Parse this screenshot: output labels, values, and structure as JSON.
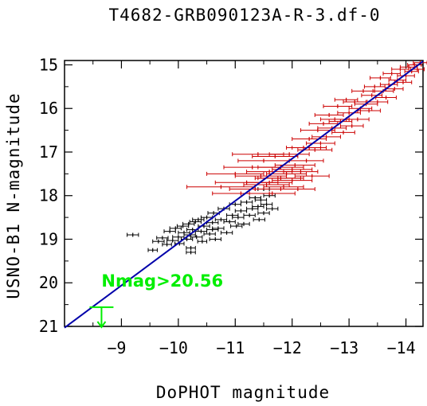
{
  "chart_data": {
    "type": "scatter",
    "title": "T4682-GRB090123A-R-3.df-0",
    "xlabel": "DoPHOT magnitude",
    "ylabel": "USNO-B1 N-magnitude",
    "xlim": [
      -8.0,
      -14.3
    ],
    "ylim": [
      21.0,
      14.9
    ],
    "x_ticks": [
      -9,
      -10,
      -11,
      -12,
      -13,
      -14
    ],
    "x_tick_labels": [
      "−9",
      "−10",
      "−11",
      "−12",
      "−13",
      "−14"
    ],
    "y_ticks": [
      15,
      16,
      17,
      18,
      19,
      20,
      21
    ],
    "y_tick_labels": [
      "15",
      "16",
      "17",
      "18",
      "19",
      "20",
      "21"
    ],
    "fit_line": {
      "x": [
        -8.0,
        -14.3
      ],
      "y": [
        21.03,
        14.92
      ],
      "color": "#0000aa"
    },
    "series": [
      {
        "color": "#000000",
        "points": [
          [
            -9.2,
            18.9,
            0.1
          ],
          [
            -9.55,
            19.25,
            0.08
          ],
          [
            -9.65,
            19.05,
            0.1
          ],
          [
            -9.72,
            18.97,
            0.1
          ],
          [
            -9.8,
            19.12,
            0.08
          ],
          [
            -9.85,
            18.82,
            0.1
          ],
          [
            -9.9,
            19.03,
            0.1
          ],
          [
            -9.95,
            18.75,
            0.1
          ],
          [
            -10.0,
            18.95,
            0.1
          ],
          [
            -10.02,
            19.1,
            0.08
          ],
          [
            -10.08,
            18.7,
            0.1
          ],
          [
            -10.1,
            18.85,
            0.1
          ],
          [
            -10.15,
            19.0,
            0.1
          ],
          [
            -10.18,
            18.65,
            0.1
          ],
          [
            -10.2,
            18.9,
            0.1
          ],
          [
            -10.22,
            19.2,
            0.08
          ],
          [
            -10.25,
            18.78,
            0.1
          ],
          [
            -10.3,
            18.6,
            0.1
          ],
          [
            -10.32,
            18.95,
            0.1
          ],
          [
            -10.35,
            18.55,
            0.1
          ],
          [
            -10.4,
            18.82,
            0.1
          ],
          [
            -10.42,
            19.05,
            0.08
          ],
          [
            -10.45,
            18.7,
            0.1
          ],
          [
            -10.5,
            18.5,
            0.1
          ],
          [
            -10.55,
            18.88,
            0.1
          ],
          [
            -10.6,
            18.62,
            0.1
          ],
          [
            -10.62,
            18.4,
            0.1
          ],
          [
            -10.65,
            19.0,
            0.1
          ],
          [
            -10.7,
            18.75,
            0.1
          ],
          [
            -10.75,
            18.55,
            0.1
          ],
          [
            -10.8,
            18.3,
            0.1
          ],
          [
            -10.85,
            18.85,
            0.1
          ],
          [
            -10.9,
            18.6,
            0.1
          ],
          [
            -10.95,
            18.45,
            0.1
          ],
          [
            -11.0,
            18.2,
            0.1
          ],
          [
            -11.02,
            18.7,
            0.1
          ],
          [
            -11.05,
            18.5,
            0.1
          ],
          [
            -11.1,
            18.35,
            0.1
          ],
          [
            -11.15,
            18.65,
            0.1
          ],
          [
            -11.2,
            18.15,
            0.1
          ],
          [
            -11.25,
            18.45,
            0.1
          ],
          [
            -11.3,
            18.3,
            0.1
          ],
          [
            -11.35,
            18.05,
            0.1
          ],
          [
            -11.4,
            18.25,
            0.1
          ],
          [
            -11.42,
            18.55,
            0.1
          ],
          [
            -11.45,
            18.1,
            0.1
          ],
          [
            -11.5,
            18.4,
            0.1
          ],
          [
            -11.55,
            18.2,
            0.1
          ],
          [
            -11.6,
            18.0,
            0.1
          ],
          [
            -11.65,
            18.3,
            0.1
          ],
          [
            -10.22,
            19.3,
            0.08
          ],
          [
            -10.6,
            18.78,
            0.1
          ],
          [
            -11.5,
            17.85,
            0.1
          ]
        ]
      },
      {
        "color": "#cc0000",
        "points": [
          [
            -10.75,
            17.8,
            0.6
          ],
          [
            -11.0,
            17.5,
            0.5
          ],
          [
            -11.1,
            17.95,
            0.5
          ],
          [
            -11.2,
            17.7,
            0.55
          ],
          [
            -11.3,
            17.35,
            0.5
          ],
          [
            -11.35,
            17.85,
            0.45
          ],
          [
            -11.45,
            17.55,
            0.45
          ],
          [
            -11.5,
            17.2,
            0.45
          ],
          [
            -11.55,
            17.75,
            0.4
          ],
          [
            -11.6,
            17.45,
            0.4
          ],
          [
            -11.65,
            17.95,
            0.4
          ],
          [
            -11.7,
            17.1,
            0.4
          ],
          [
            -11.75,
            17.6,
            0.4
          ],
          [
            -11.8,
            17.35,
            0.4
          ],
          [
            -11.85,
            17.8,
            0.35
          ],
          [
            -11.9,
            17.5,
            0.35
          ],
          [
            -11.95,
            17.05,
            0.35
          ],
          [
            -12.0,
            17.65,
            0.35
          ],
          [
            -12.05,
            17.3,
            0.35
          ],
          [
            -12.1,
            17.85,
            0.3
          ],
          [
            -12.15,
            17.45,
            0.3
          ],
          [
            -12.2,
            16.9,
            0.3
          ],
          [
            -12.25,
            17.2,
            0.3
          ],
          [
            -12.3,
            16.7,
            0.3
          ],
          [
            -12.35,
            17.55,
            0.3
          ],
          [
            -12.4,
            16.95,
            0.3
          ],
          [
            -12.45,
            16.5,
            0.3
          ],
          [
            -12.5,
            16.8,
            0.25
          ],
          [
            -12.55,
            16.35,
            0.25
          ],
          [
            -12.6,
            16.65,
            0.25
          ],
          [
            -12.65,
            16.15,
            0.25
          ],
          [
            -12.7,
            16.45,
            0.25
          ],
          [
            -12.75,
            16.25,
            0.25
          ],
          [
            -12.8,
            15.95,
            0.25
          ],
          [
            -12.85,
            16.3,
            0.2
          ],
          [
            -12.9,
            16.55,
            0.2
          ],
          [
            -12.95,
            15.8,
            0.2
          ],
          [
            -13.0,
            16.1,
            0.2
          ],
          [
            -13.05,
            16.4,
            0.2
          ],
          [
            -13.1,
            15.85,
            0.2
          ],
          [
            -13.2,
            16.0,
            0.2
          ],
          [
            -13.25,
            15.6,
            0.2
          ],
          [
            -13.3,
            15.9,
            0.2
          ],
          [
            -13.35,
            16.05,
            0.2
          ],
          [
            -13.4,
            15.7,
            0.18
          ],
          [
            -13.45,
            15.5,
            0.18
          ],
          [
            -13.5,
            15.85,
            0.18
          ],
          [
            -13.55,
            15.3,
            0.18
          ],
          [
            -13.6,
            15.6,
            0.18
          ],
          [
            -13.65,
            15.75,
            0.18
          ],
          [
            -13.7,
            15.45,
            0.15
          ],
          [
            -13.75,
            15.2,
            0.15
          ],
          [
            -13.8,
            15.55,
            0.15
          ],
          [
            -13.85,
            15.35,
            0.15
          ],
          [
            -13.9,
            15.1,
            0.15
          ],
          [
            -13.95,
            15.4,
            0.15
          ],
          [
            -14.0,
            15.25,
            0.15
          ],
          [
            -14.05,
            15.05,
            0.15
          ],
          [
            -14.1,
            15.15,
            0.12
          ],
          [
            -14.15,
            15.0,
            0.12
          ],
          [
            -14.2,
            15.1,
            0.12
          ],
          [
            -14.25,
            14.95,
            0.12
          ],
          [
            -11.4,
            17.05,
            0.45
          ],
          [
            -11.8,
            17.6,
            0.4
          ],
          [
            -12.0,
            17.4,
            0.35
          ],
          [
            -11.6,
            17.7,
            0.4
          ],
          [
            -12.3,
            16.9,
            0.3
          ],
          [
            -13.15,
            16.25,
            0.2
          ]
        ]
      }
    ],
    "annotations": [
      {
        "text": "Nmag>20.56",
        "color": "#00ee00",
        "limit_x": -8.65,
        "limit_y": 20.56
      }
    ]
  }
}
